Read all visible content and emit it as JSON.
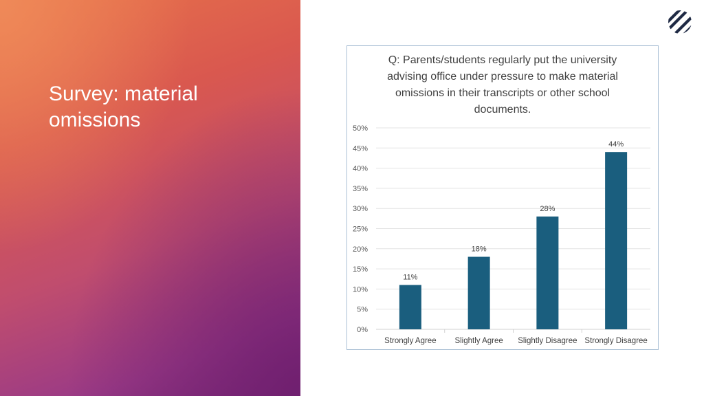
{
  "slide": {
    "title": "Survey: material omissions"
  },
  "logo": {
    "icon": "striped-circle-logo-icon",
    "color": "#1f2a44"
  },
  "chart_data": {
    "type": "bar",
    "title": "Q: Parents/students regularly put the university advising office under pressure to make material omissions in their transcripts or other school documents.",
    "categories": [
      "Strongly Agree",
      "Slightly Agree",
      "Slightly Disagree",
      "Strongly Disagree"
    ],
    "values": [
      11,
      18,
      28,
      44
    ],
    "data_labels": [
      "11%",
      "18%",
      "28%",
      "44%"
    ],
    "ylim": [
      0,
      50
    ],
    "y_ticks": [
      "0%",
      "5%",
      "10%",
      "15%",
      "20%",
      "25%",
      "30%",
      "35%",
      "40%",
      "45%",
      "50%"
    ],
    "xlabel": "",
    "ylabel": "",
    "grid": true,
    "legend": "none",
    "bar_color": "#1a5e7e"
  }
}
